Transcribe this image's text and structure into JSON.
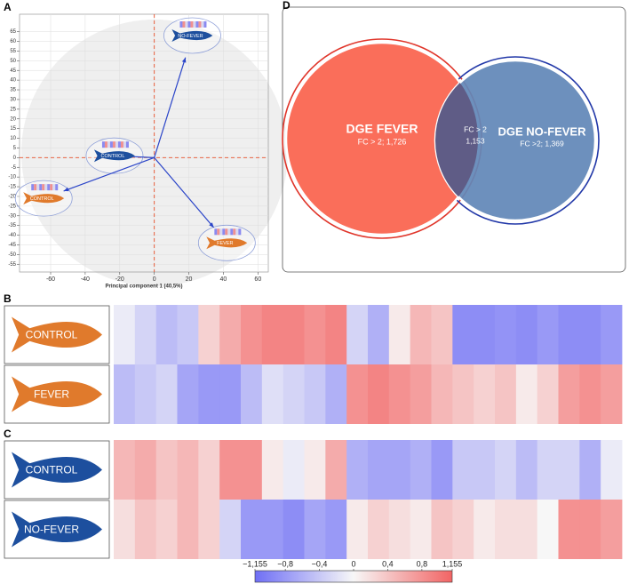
{
  "chart_data": [
    {
      "type": "scatter",
      "panel": "A",
      "xlabel": "Principal component 1 (40,5%)",
      "xlim": [
        -78,
        66
      ],
      "ylim": [
        -59,
        74
      ],
      "xticks": [
        -60,
        -40,
        -20,
        0,
        20,
        40,
        60
      ],
      "yticks": [
        -55,
        -50,
        -45,
        -40,
        -35,
        -30,
        -25,
        -20,
        -15,
        -10,
        -5,
        0,
        5,
        10,
        15,
        20,
        25,
        30,
        35,
        40,
        45,
        50,
        55,
        60,
        65
      ],
      "grid": true,
      "points": [
        {
          "label": "NO-FEVER",
          "x": 22,
          "y": 63,
          "color": "#1d4f9e"
        },
        {
          "label": "CONTROL",
          "x": -23,
          "y": 1,
          "color": "#1d4f9e"
        },
        {
          "label": "CONTROL",
          "x": -64,
          "y": -21,
          "color": "#e07a2c"
        },
        {
          "label": "FEVER",
          "x": 42,
          "y": -44,
          "color": "#e07a2c"
        }
      ]
    },
    {
      "type": "venn",
      "panel": "D",
      "sets": [
        {
          "name": "DGE FEVER",
          "detail": "FC > 2; 1,726",
          "color": "#fa6e5a",
          "edge": "#e0352a"
        },
        {
          "name": "DGE NO-FEVER",
          "detail": "FC >2; 1,369",
          "color": "#6288b8",
          "edge": "#2238a8"
        }
      ],
      "overlap": {
        "name": "FC > 2",
        "detail": "1,153",
        "color": "#5f5c86"
      }
    },
    {
      "type": "heatmap",
      "panel": "B",
      "zlim": [
        -1.155,
        1.155
      ],
      "colors": [
        "#6f6ff5",
        "#f7f7f7",
        "#f26464"
      ],
      "rows": [
        {
          "label": "CONTROL",
          "color": "#e07a2c",
          "values": [
            -0.1,
            -0.3,
            -0.5,
            -0.4,
            0.3,
            0.6,
            0.8,
            0.9,
            0.9,
            0.8,
            0.9,
            -0.3,
            -0.6,
            0.1,
            0.5,
            0.4,
            -0.9,
            -0.9,
            -0.85,
            -0.9,
            -0.8,
            -0.9,
            -0.9,
            -0.8
          ]
        },
        {
          "label": "FEVER",
          "color": "#e07a2c",
          "values": [
            -0.5,
            -0.4,
            -0.3,
            -0.7,
            -0.8,
            -0.8,
            -0.5,
            -0.2,
            -0.3,
            -0.4,
            -0.6,
            0.8,
            0.9,
            0.8,
            0.7,
            0.5,
            0.4,
            0.3,
            0.4,
            0.1,
            0.3,
            0.7,
            0.8,
            0.7
          ]
        }
      ]
    },
    {
      "type": "heatmap",
      "panel": "C",
      "zlim": [
        -1.155,
        1.155
      ],
      "colors": [
        "#6f6ff5",
        "#f7f7f7",
        "#f26464"
      ],
      "rows": [
        {
          "label": "CONTROL",
          "color": "#1d4f9e",
          "values": [
            0.5,
            0.6,
            0.4,
            0.5,
            0.3,
            0.8,
            0.8,
            0.1,
            -0.1,
            0.1,
            0.6,
            -0.6,
            -0.7,
            -0.7,
            -0.6,
            -0.8,
            -0.4,
            -0.4,
            -0.3,
            -0.5,
            -0.3,
            -0.3,
            -0.6,
            -0.1
          ]
        },
        {
          "label": "NO-FEVER",
          "color": "#1d4f9e",
          "values": [
            0.2,
            0.4,
            0.3,
            0.5,
            0.3,
            -0.3,
            -0.8,
            -0.8,
            -0.9,
            -0.7,
            -0.8,
            0.1,
            0.3,
            0.2,
            0.1,
            0.4,
            0.3,
            0.1,
            0.2,
            0.2,
            0.0,
            0.8,
            0.8,
            0.7
          ]
        }
      ],
      "colorbar_ticks": [
        {
          "value": -1.155,
          "label": "−1,155"
        },
        {
          "value": -0.8,
          "label": "−0,8"
        },
        {
          "value": -0.4,
          "label": "−0,4"
        },
        0,
        {
          "value": 0.4,
          "label": "0,4"
        },
        {
          "value": 0.8,
          "label": "0,8"
        },
        {
          "value": 1.155,
          "label": "1,155"
        }
      ]
    }
  ]
}
